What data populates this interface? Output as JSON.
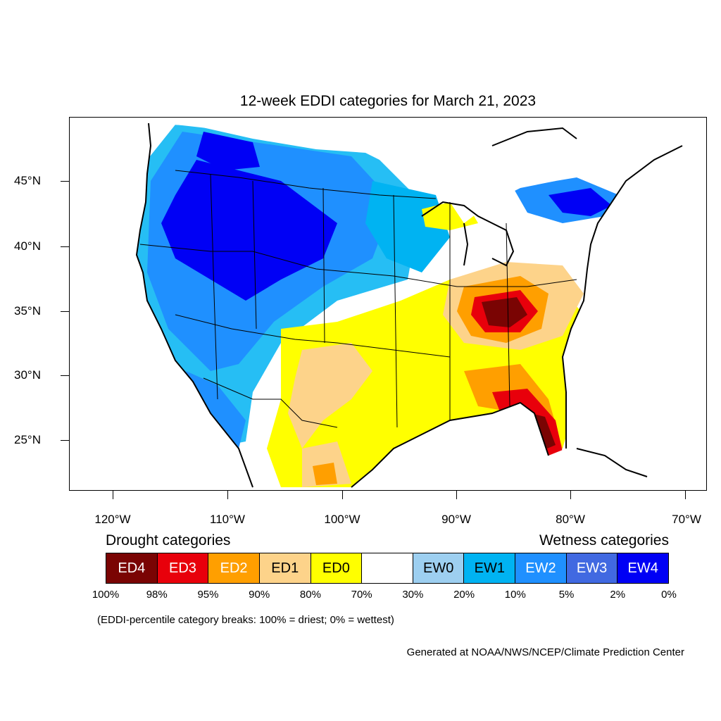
{
  "title": "12-week EDDI categories for March 21, 2023",
  "lat_labels": [
    "45°N",
    "40°N",
    "35°N",
    "30°N",
    "25°N"
  ],
  "lon_labels": [
    "120°W",
    "110°W",
    "100°W",
    "90°W",
    "80°W",
    "70°W"
  ],
  "legend": {
    "drought_heading": "Drought categories",
    "wetness_heading": "Wetness categories",
    "categories": [
      {
        "label": "ED4",
        "color": "#7a0403"
      },
      {
        "label": "ED3",
        "color": "#e8000b"
      },
      {
        "label": "ED2",
        "color": "#ff9f00"
      },
      {
        "label": "ED1",
        "color": "#fdd38a"
      },
      {
        "label": "ED0",
        "color": "#ffff00"
      },
      {
        "label": "",
        "color": "#ffffff"
      },
      {
        "label": "EW0",
        "color": "#9dcff0"
      },
      {
        "label": "EW1",
        "color": "#00b3f2"
      },
      {
        "label": "EW2",
        "color": "#1f90ff"
      },
      {
        "label": "EW3",
        "color": "#4169e1"
      },
      {
        "label": "EW4",
        "color": "#0000f5"
      }
    ],
    "breaks": [
      "100%",
      "98%",
      "95%",
      "90%",
      "80%",
      "70%",
      "30%",
      "20%",
      "10%",
      "5%",
      "2%",
      "0%"
    ]
  },
  "note": "(EDDI-percentile category breaks: 100% = driest; 0% = wettest)",
  "credit": "Generated at NOAA/NWS/NCEP/Climate Prediction Center"
}
